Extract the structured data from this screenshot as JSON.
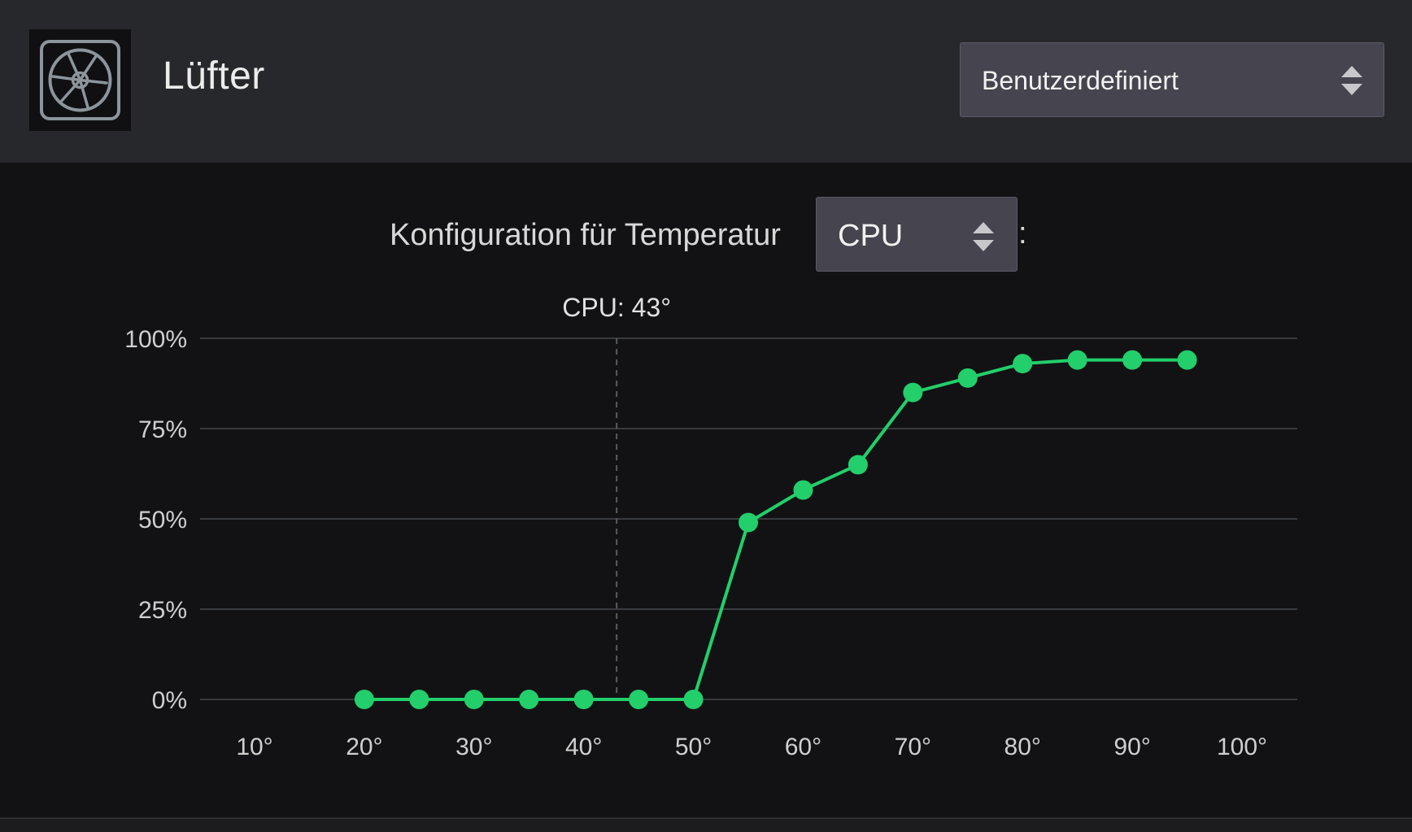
{
  "header": {
    "title": "Lüfter",
    "icon": "fan-icon",
    "mode_select": {
      "value": "Benutzerdefiniert",
      "icon": "updown-arrows-icon"
    }
  },
  "config": {
    "label": "Konfiguration für Temperatur",
    "sensor_select": {
      "value": "CPU",
      "icon": "updown-arrows-icon"
    },
    "suffix": ":"
  },
  "colors": {
    "curve": "#22cf6b",
    "grid": "#3a3b40",
    "axis_text": "#cfcfcf",
    "marker": "#5a5a60"
  },
  "chart_data": {
    "type": "line",
    "marker_label": "CPU: 43°",
    "marker_x": 43,
    "xlim": [
      10,
      100
    ],
    "ylim": [
      0,
      100
    ],
    "x_ticks": [
      10,
      20,
      30,
      40,
      50,
      60,
      70,
      80,
      90,
      100
    ],
    "x_tick_labels": [
      "10°",
      "20°",
      "30°",
      "40°",
      "50°",
      "60°",
      "70°",
      "80°",
      "90°",
      "100°"
    ],
    "y_ticks": [
      0,
      25,
      50,
      75,
      100
    ],
    "y_tick_labels": [
      "0%",
      "25%",
      "50%",
      "75%",
      "100%"
    ],
    "grid": true,
    "series": [
      {
        "x": [
          20,
          25,
          30,
          35,
          40,
          45,
          50,
          55,
          60,
          65,
          70,
          75,
          80,
          85,
          90,
          95
        ],
        "values": [
          0,
          0,
          0,
          0,
          0,
          0,
          0,
          49,
          58,
          65,
          85,
          89,
          93,
          94,
          94,
          94
        ]
      }
    ]
  }
}
